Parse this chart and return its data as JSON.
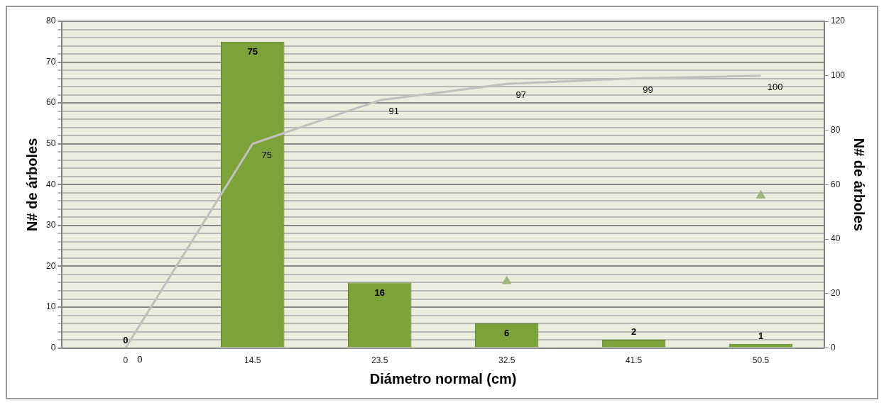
{
  "chart_data": {
    "type": "bar",
    "xlabel": "Diámetro normal (cm)",
    "ylabel": "N# de árboles",
    "y2label": "N# de árboles",
    "categories": [
      "0",
      "14.5",
      "23.5",
      "32.5",
      "41.5",
      "50.5"
    ],
    "series": [
      {
        "color": "#7ba33a",
        "values": [
          0,
          75,
          16,
          6,
          2,
          1
        ],
        "value_labels": [
          "0",
          "75",
          "16",
          "6",
          "2",
          "1"
        ]
      },
      {
        "type": "line",
        "axis": "y2",
        "color": "#c0c0c0",
        "values": [
          0,
          75,
          91,
          97,
          99,
          100
        ],
        "value_labels": [
          "0",
          "75",
          "91",
          "97",
          "99",
          "100"
        ],
        "marker": "none"
      },
      {
        "type": "scatter",
        "axis": "y2",
        "color": "#9fb57a",
        "values": [
          null,
          null,
          null,
          24.5,
          null,
          56
        ],
        "marker": "triangle"
      }
    ],
    "ylim": [
      0,
      80
    ],
    "yticks": [
      0,
      {
        "value": 2,
        "label": null
      },
      {
        "value": 4,
        "label": null
      },
      {
        "value": 6,
        "label": null
      },
      {
        "value": 8,
        "label": null
      },
      10,
      {
        "value": 12,
        "label": null
      },
      {
        "value": 14,
        "label": null
      },
      {
        "value": 16,
        "label": null
      },
      {
        "value": 18,
        "label": null
      },
      20,
      {
        "value": 22,
        "label": null
      },
      {
        "value": 24,
        "label": null
      },
      {
        "value": 26,
        "label": null
      },
      {
        "value": 28,
        "label": null
      },
      30,
      {
        "value": 32,
        "label": null
      },
      {
        "value": 34,
        "label": null
      },
      {
        "value": 36,
        "label": null
      },
      {
        "value": 38,
        "label": null
      },
      40,
      {
        "value": 42,
        "label": null
      },
      {
        "value": 44,
        "label": null
      },
      {
        "value": 46,
        "label": null
      },
      {
        "value": 48,
        "label": null
      },
      50,
      {
        "value": 52,
        "label": null
      },
      {
        "value": 54,
        "label": null
      },
      {
        "value": 56,
        "label": null
      },
      {
        "value": 58,
        "label": null
      },
      60,
      {
        "value": 62,
        "label": null
      },
      {
        "value": 64,
        "label": null
      },
      {
        "value": 66,
        "label": null
      },
      {
        "value": 68,
        "label": null
      },
      70,
      {
        "value": 72,
        "label": null
      },
      {
        "value": 74,
        "label": null
      },
      {
        "value": 76,
        "label": null
      },
      {
        "value": 78,
        "label": null
      },
      80
    ],
    "y2lim": [
      0,
      120
    ],
    "y2ticks": [
      0,
      20,
      40,
      60,
      80,
      100,
      120
    ],
    "grid": "y",
    "legend": false
  }
}
